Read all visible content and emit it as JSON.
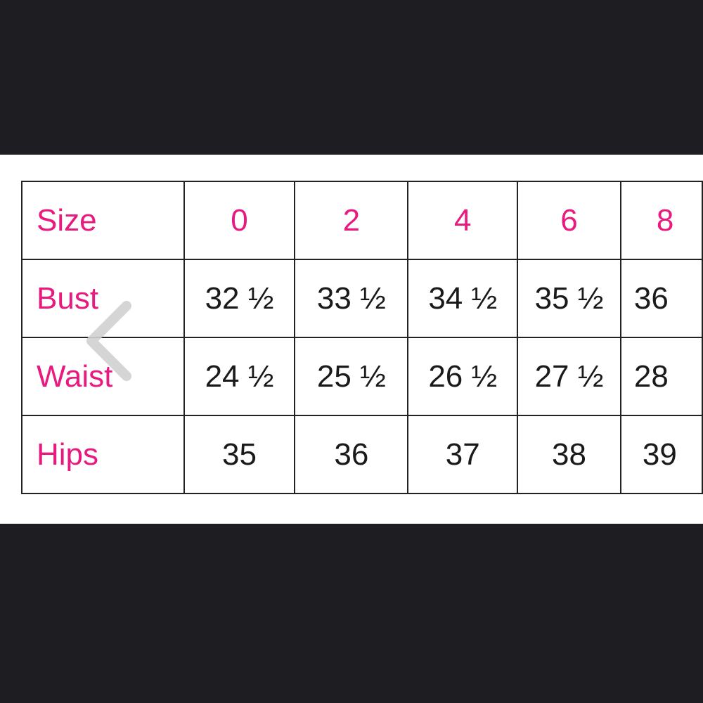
{
  "table": {
    "header": {
      "label": "Size",
      "values": [
        "0",
        "2",
        "4",
        "6",
        "8"
      ]
    },
    "rows": [
      {
        "label": "Bust",
        "values": [
          "32 ½",
          "33 ½",
          "34 ½",
          "35 ½",
          "36"
        ]
      },
      {
        "label": "Waist",
        "values": [
          "24 ½",
          "25 ½",
          "26 ½",
          "27 ½",
          "28"
        ]
      },
      {
        "label": "Hips",
        "values": [
          "35",
          "36",
          "37",
          "38",
          "39"
        ]
      }
    ]
  },
  "colors": {
    "label": "#e8197f",
    "background": "#1e1e22"
  },
  "navigation": {
    "previous_icon": "chevron-left-icon"
  }
}
